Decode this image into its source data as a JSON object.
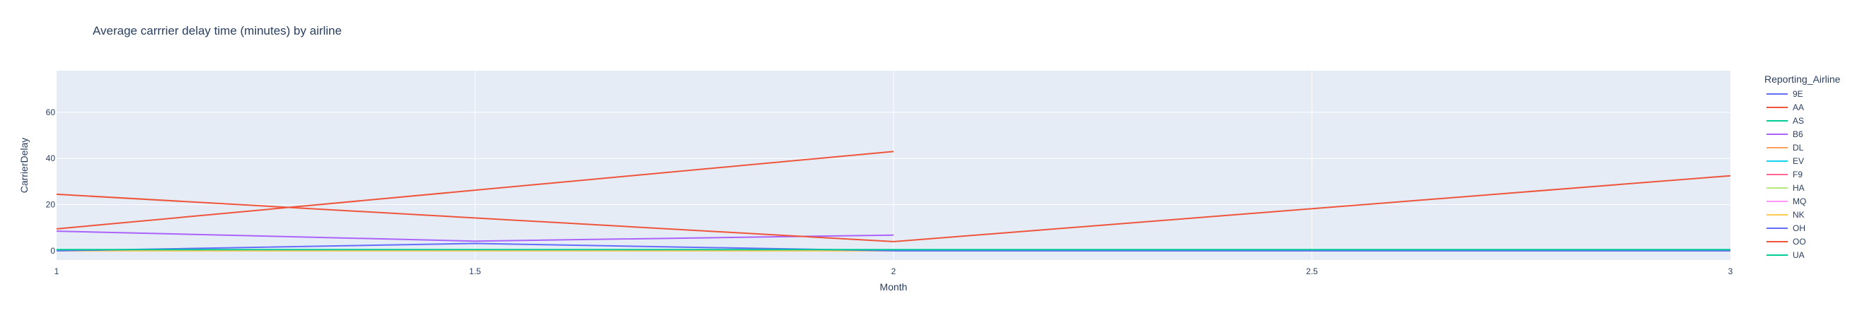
{
  "chart_data": {
    "type": "line",
    "title": "Average carrrier delay time (minutes) by airline",
    "xlabel": "Month",
    "ylabel": "CarrierDelay",
    "xlim": [
      1,
      3
    ],
    "ylim": [
      -4,
      78
    ],
    "x_ticks": [
      1,
      1.5,
      2,
      2.5,
      3
    ],
    "y_ticks": [
      0,
      20,
      40,
      60
    ],
    "grid": true,
    "plot_background": "#e5ecf6",
    "legend": {
      "title": "Reporting_Airline",
      "placement": "right"
    },
    "series": [
      {
        "name": "9E",
        "color": "#636efa",
        "x": [
          1,
          2,
          3
        ],
        "y": [
          0,
          0,
          0
        ]
      },
      {
        "name": "AA",
        "color": "#EF553B",
        "x": [
          1,
          2
        ],
        "y": [
          9.5,
          43
        ]
      },
      {
        "name": "AS",
        "color": "#00cc96",
        "x": [
          1,
          2
        ],
        "y": [
          0,
          0
        ]
      },
      {
        "name": "B6",
        "color": "#ab63fa",
        "x": [
          1,
          1.5,
          2
        ],
        "y": [
          8.5,
          4.2,
          6.8
        ]
      },
      {
        "name": "DL",
        "color": "#FFA15A",
        "x": [
          1,
          2,
          3
        ],
        "y": [
          0,
          0,
          0
        ]
      },
      {
        "name": "EV",
        "color": "#19d3f3",
        "x": [
          1,
          2
        ],
        "y": [
          0,
          0
        ]
      },
      {
        "name": "F9",
        "color": "#FF6692",
        "x": [
          1,
          2
        ],
        "y": [
          0,
          0
        ]
      },
      {
        "name": "HA",
        "color": "#B6E880",
        "x": [
          1,
          2
        ],
        "y": [
          0,
          0
        ]
      },
      {
        "name": "MQ",
        "color": "#FF97FF",
        "x": [
          1,
          2
        ],
        "y": [
          0,
          0
        ]
      },
      {
        "name": "NK",
        "color": "#FECB52",
        "x": [
          1,
          2
        ],
        "y": [
          0,
          0
        ]
      },
      {
        "name": "OH",
        "color": "#636efa",
        "x": [
          1,
          1.5,
          2,
          3
        ],
        "y": [
          0,
          3.2,
          0,
          0
        ]
      },
      {
        "name": "OO",
        "color": "#EF553B",
        "x": [
          1,
          2,
          3
        ],
        "y": [
          24.5,
          4,
          32.5
        ]
      },
      {
        "name": "UA",
        "color": "#00cc96",
        "x": [
          1,
          2,
          3
        ],
        "y": [
          0.5,
          0.5,
          0.5
        ]
      }
    ]
  }
}
